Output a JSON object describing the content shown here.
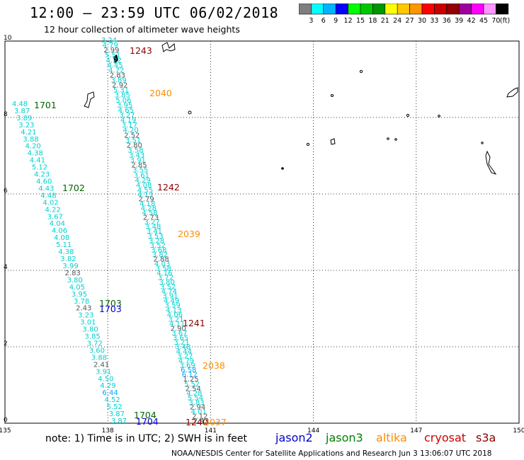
{
  "header": {
    "title": "12:00 – 23:59 UTC 06/02/2018",
    "subtitle": "12 hour collection of altimeter wave heights"
  },
  "colorbar": {
    "colors": [
      "#7f7f7f",
      "#00ffff",
      "#00b4ff",
      "#0000ff",
      "#00ff00",
      "#00c800",
      "#009600",
      "#ffff00",
      "#ffc800",
      "#ff9600",
      "#ff0000",
      "#c80000",
      "#960000",
      "#a000a0",
      "#ff00ff",
      "#ff96ff",
      "#000000"
    ],
    "labels": [
      "3",
      "6",
      "9",
      "12",
      "15",
      "18",
      "21",
      "24",
      "27",
      "30",
      "33",
      "36",
      "39",
      "42",
      "45",
      "70",
      "(ft)"
    ]
  },
  "axes": {
    "x_ticks": [
      "135",
      "138",
      "141",
      "144",
      "147",
      "150"
    ],
    "y_ticks": [
      "0",
      "2",
      "4",
      "6",
      "8",
      "10"
    ]
  },
  "passes": [
    {
      "label": "1243",
      "color": "#8b0000"
    },
    {
      "label": "2040",
      "color": "#ff8c00"
    },
    {
      "label": "1701",
      "color": "#006400"
    },
    {
      "label": "1702",
      "color": "#006400"
    },
    {
      "label": "1242",
      "color": "#8b0000"
    },
    {
      "label": "2039",
      "color": "#ff8c00"
    },
    {
      "label": "1703",
      "color": "#006400"
    },
    {
      "label": "1703",
      "color": "#0000cd"
    },
    {
      "label": "1241",
      "color": "#8b0000"
    },
    {
      "label": "2038",
      "color": "#ff8c00"
    },
    {
      "label": "1704",
      "color": "#006400"
    },
    {
      "label": "1704",
      "color": "#0000cd"
    },
    {
      "label": "1240",
      "color": "#8b0000"
    },
    {
      "label": "2037",
      "color": "#ff8c00"
    }
  ],
  "tracks": [
    {
      "name": "west-track-1701",
      "values": [
        "4.48",
        "3.87",
        "3.89",
        "3.23",
        "4.21",
        "3.88",
        "4.20",
        "4.38",
        "4.41",
        "5.12",
        "4.23",
        "4.60",
        "4.43",
        "4.48",
        "4.02",
        "4.22",
        "3.67",
        "4.04",
        "4.06",
        "4.08",
        "5.11",
        "4.38",
        "3.82",
        "3.99",
        "2.83",
        "3.80",
        "4.05",
        "3.95",
        "3.78",
        "2.43",
        "3.23",
        "3.01",
        "3.80",
        "3.85",
        "3.72",
        "3.60",
        "3.88",
        "2.41",
        "3.91",
        "4.50",
        "4.29",
        "6.44",
        "4.52",
        "5.52",
        "3.87",
        "3.87"
      ]
    },
    {
      "name": "middle-track-1243",
      "values": [
        "3.24",
        "4.79",
        "2.99",
        "5.51",
        "4.22",
        "4.45",
        "4.72",
        "2.83",
        "3.89",
        "2.92",
        "5.31",
        "3.85",
        "5.06",
        "3.95",
        "4.65",
        "3.27",
        "4.19",
        "3.17",
        "4.20",
        "2.52",
        "3.51",
        "2.80",
        "3.58",
        "3.43",
        "3.91",
        "2.85",
        "3.55",
        "3.61",
        "4.29",
        "4.08",
        "4.55"
      ]
    },
    {
      "name": "east-track-1242",
      "values": [
        "4.13",
        "2.79",
        "4.18",
        "4.28",
        "4.58",
        "2.73",
        "3.27",
        "3.48",
        "3.41",
        "3.53",
        "3.28",
        "3.52",
        "3.68",
        "3.82",
        "2.88",
        "4.03",
        "3.58",
        "4.16",
        "3.72",
        "3.80",
        "3.52",
        "4.74",
        "3.91",
        "4.49",
        "3.59",
        "4.13",
        "4.06",
        "3.21",
        "4.11",
        "2.90",
        "3.67",
        "3.65",
        "3.21",
        "3.48",
        "4.44",
        "3.27",
        "4.79",
        "3.69",
        "6.58",
        "6.12",
        "1.25",
        "5.52",
        "2.54",
        "4.28",
        "5.54",
        "3.83",
        "2.94",
        "4.01",
        "2.12",
        "2.43"
      ]
    }
  ],
  "footer": {
    "note": "note:  1) Time is in UTC;  2) SWH is in feet",
    "credit": "NOAA/NESDIS Center for Satellite Applications and Research    Jun  3 13:06:07 UTC 2018",
    "legend": [
      {
        "name": "jason2",
        "color": "#0000cd"
      },
      {
        "name": "jason3",
        "color": "#008000"
      },
      {
        "name": "altika",
        "color": "#ff8c00"
      },
      {
        "name": "cryosat",
        "color": "#cc0000"
      },
      {
        "name": "s3a",
        "color": "#8b0000"
      }
    ]
  }
}
